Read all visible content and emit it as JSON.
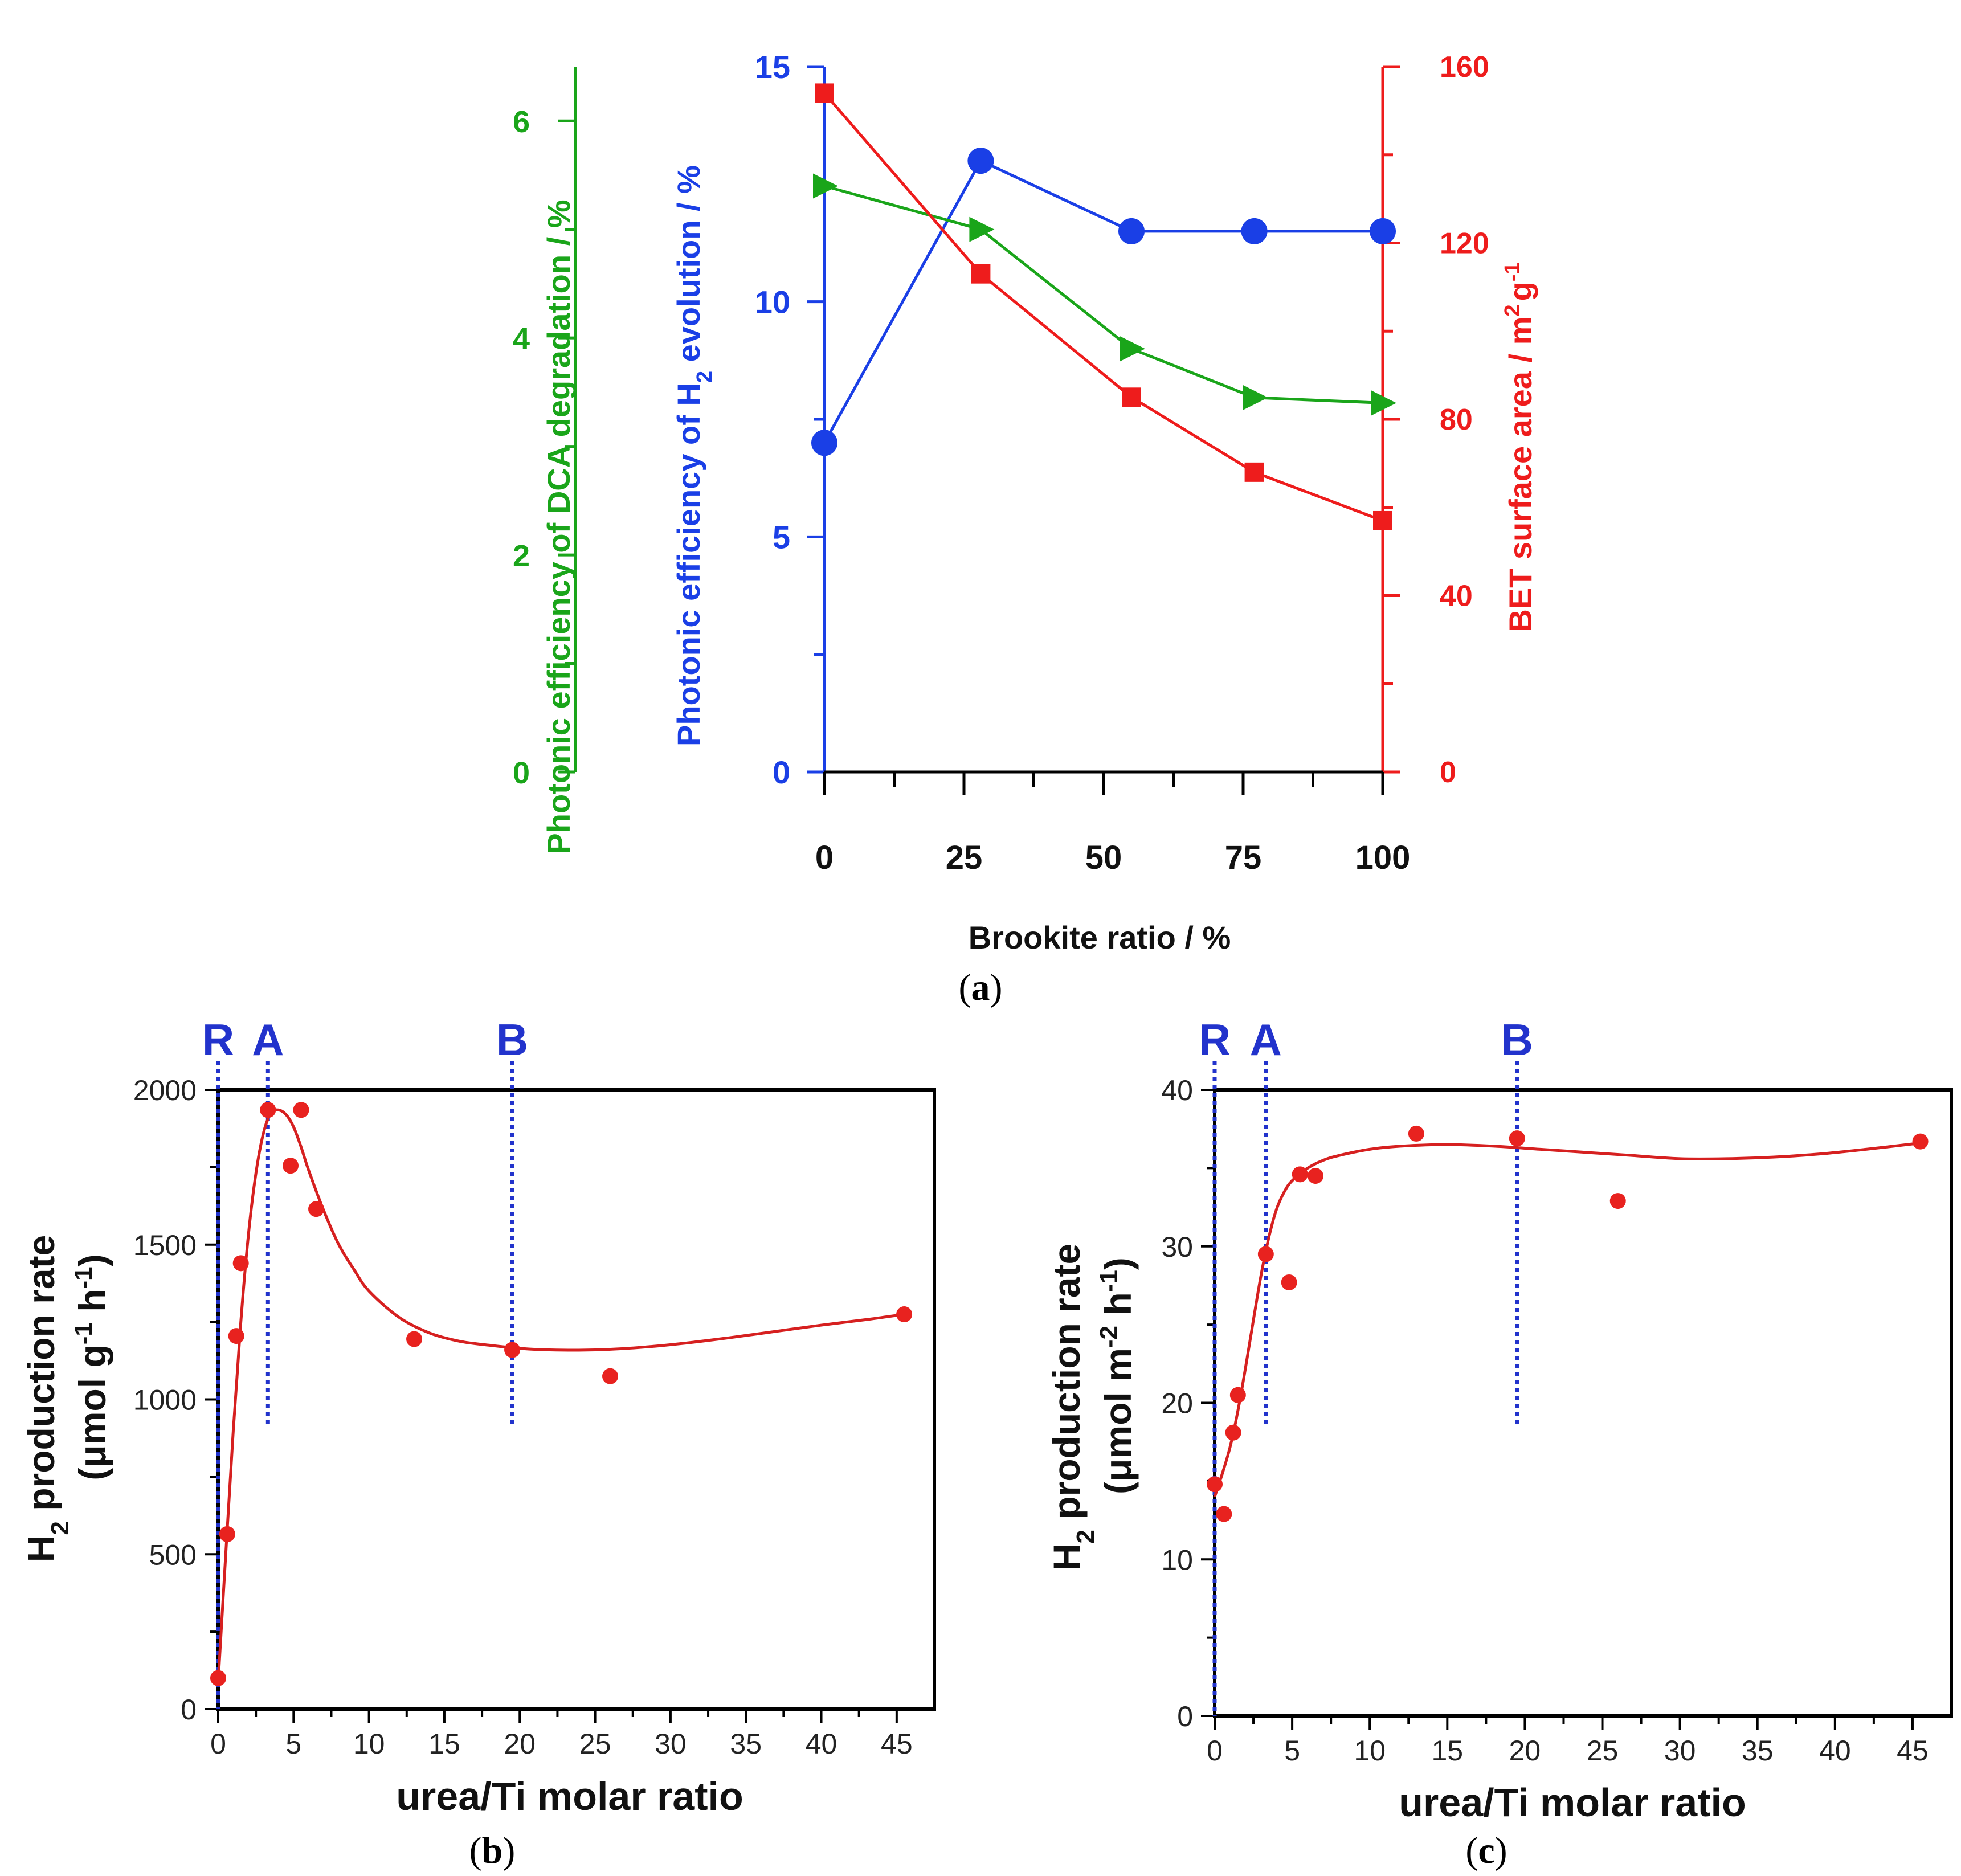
{
  "chart_data": [
    {
      "type": "line",
      "panel": "(a)",
      "panel_letter": "a",
      "xlabel": "Brookite ratio / %",
      "x_ticks": [
        0,
        25,
        50,
        75,
        100
      ],
      "xlim": [
        0,
        100
      ],
      "axes": {
        "dca": {
          "label": "Photonic efficiency of DCA degradation / %",
          "ticks": [
            0,
            2,
            4,
            6
          ],
          "ylim": [
            0,
            6.5
          ],
          "color": "#1aa51a"
        },
        "h2": {
          "label_main": "Photonic efficiency of H",
          "label_sub": "2",
          "label_tail": " evolution / %",
          "ticks": [
            0,
            5,
            10,
            15
          ],
          "ylim": [
            0,
            15
          ],
          "color": "#1a3fe6"
        },
        "bet": {
          "label_main": "BET surface area / m",
          "label_sup1": "2",
          "label_mid": "g",
          "label_sup2": "-1",
          "ticks": [
            0,
            40,
            80,
            120,
            160
          ],
          "ylim": [
            0,
            160
          ],
          "color": "#ee1c1c"
        }
      },
      "series": [
        {
          "name": "H2 evolution",
          "axis": "h2",
          "marker": "circle",
          "color": "#1a3fe6",
          "x": [
            0,
            28,
            55,
            77,
            100
          ],
          "values": [
            7.0,
            13.0,
            11.5,
            11.5,
            11.5
          ]
        },
        {
          "name": "DCA degradation",
          "axis": "dca",
          "marker": "triangle",
          "color": "#1aa51a",
          "x": [
            0,
            28,
            55,
            77,
            100
          ],
          "values": [
            5.4,
            5.0,
            3.9,
            3.45,
            3.4
          ]
        },
        {
          "name": "BET surface area",
          "axis": "bet",
          "marker": "square",
          "color": "#ee1c1c",
          "x": [
            0,
            28,
            55,
            77,
            100
          ],
          "values": [
            154,
            113,
            85,
            68,
            57
          ]
        }
      ]
    },
    {
      "type": "scatter",
      "panel": "(b)",
      "panel_letter": "b",
      "xlabel": "urea/Ti molar ratio",
      "ylabel_main": "H",
      "ylabel_sub": "2",
      "ylabel_tail": " production rate",
      "ylabel_unit": "(μmol g",
      "ylabel_unit_sup1": "-1",
      "ylabel_unit_mid": " h",
      "ylabel_unit_sup2": "-1",
      "ylabel_unit_end": ")",
      "xlim": [
        0,
        47.5
      ],
      "ylim": [
        0,
        2000
      ],
      "x_ticks": [
        0,
        5,
        10,
        15,
        20,
        25,
        30,
        35,
        40,
        45
      ],
      "y_ticks": [
        0,
        500,
        1000,
        1500,
        2000
      ],
      "phase_markers": [
        {
          "label": "R",
          "x": 0
        },
        {
          "label": "A",
          "x": 3.3
        },
        {
          "label": "B",
          "x": 19.5
        }
      ],
      "points": {
        "x": [
          0,
          0.6,
          1.2,
          1.5,
          3.3,
          4.8,
          5.5,
          6.5,
          13,
          19.5,
          26,
          45.5
        ],
        "y": [
          100,
          565,
          1205,
          1440,
          1935,
          1755,
          1935,
          1615,
          1195,
          1160,
          1075,
          1275
        ]
      },
      "fit_curve": {
        "x": [
          0,
          0.5,
          1,
          1.5,
          2,
          2.5,
          3,
          3.5,
          4,
          4.5,
          5,
          5.5,
          6,
          7,
          8,
          9,
          10,
          12,
          14,
          16,
          18,
          20,
          22,
          25,
          28,
          31,
          34,
          37,
          40,
          43,
          45.5
        ],
        "y": [
          90,
          500,
          900,
          1250,
          1530,
          1730,
          1860,
          1925,
          1935,
          1920,
          1880,
          1815,
          1740,
          1610,
          1500,
          1420,
          1350,
          1265,
          1215,
          1188,
          1175,
          1165,
          1160,
          1160,
          1168,
          1182,
          1200,
          1220,
          1240,
          1258,
          1275
        ]
      }
    },
    {
      "type": "scatter",
      "panel": "(c)",
      "panel_letter": "c",
      "xlabel": "urea/Ti molar ratio",
      "ylabel_main": "H",
      "ylabel_sub": "2",
      "ylabel_tail": " production rate",
      "ylabel_unit": "(μmol m",
      "ylabel_unit_sup1": "-2",
      "ylabel_unit_mid": " h",
      "ylabel_unit_sup2": "-1",
      "ylabel_unit_end": ")",
      "xlim": [
        0,
        47.5
      ],
      "ylim": [
        0,
        40
      ],
      "x_ticks": [
        0,
        5,
        10,
        15,
        20,
        25,
        30,
        35,
        40,
        45
      ],
      "y_ticks": [
        0,
        10,
        20,
        30,
        40
      ],
      "phase_markers": [
        {
          "label": "R",
          "x": 0
        },
        {
          "label": "A",
          "x": 3.3
        },
        {
          "label": "B",
          "x": 19.5
        }
      ],
      "points": {
        "x": [
          0,
          0.6,
          1.2,
          1.5,
          3.3,
          4.8,
          5.5,
          6.5,
          13,
          19.5,
          26,
          45.5
        ],
        "y": [
          14.8,
          12.9,
          18.1,
          20.5,
          29.5,
          27.7,
          34.6,
          34.5,
          37.2,
          36.9,
          32.9,
          36.7
        ]
      },
      "fit_curve": {
        "x": [
          0,
          0.5,
          1,
          1.5,
          2,
          2.5,
          3,
          3.5,
          4,
          4.5,
          5,
          6,
          7,
          8,
          10,
          12,
          15,
          18,
          21,
          24,
          27,
          30,
          33,
          36,
          39,
          42,
          45.5
        ],
        "y": [
          14.0,
          15.5,
          17.2,
          19.5,
          22.3,
          25.3,
          28.2,
          30.6,
          32.4,
          33.5,
          34.2,
          35.0,
          35.5,
          35.8,
          36.2,
          36.4,
          36.5,
          36.4,
          36.2,
          36.0,
          35.8,
          35.6,
          35.6,
          35.7,
          35.9,
          36.2,
          36.6
        ]
      }
    }
  ]
}
